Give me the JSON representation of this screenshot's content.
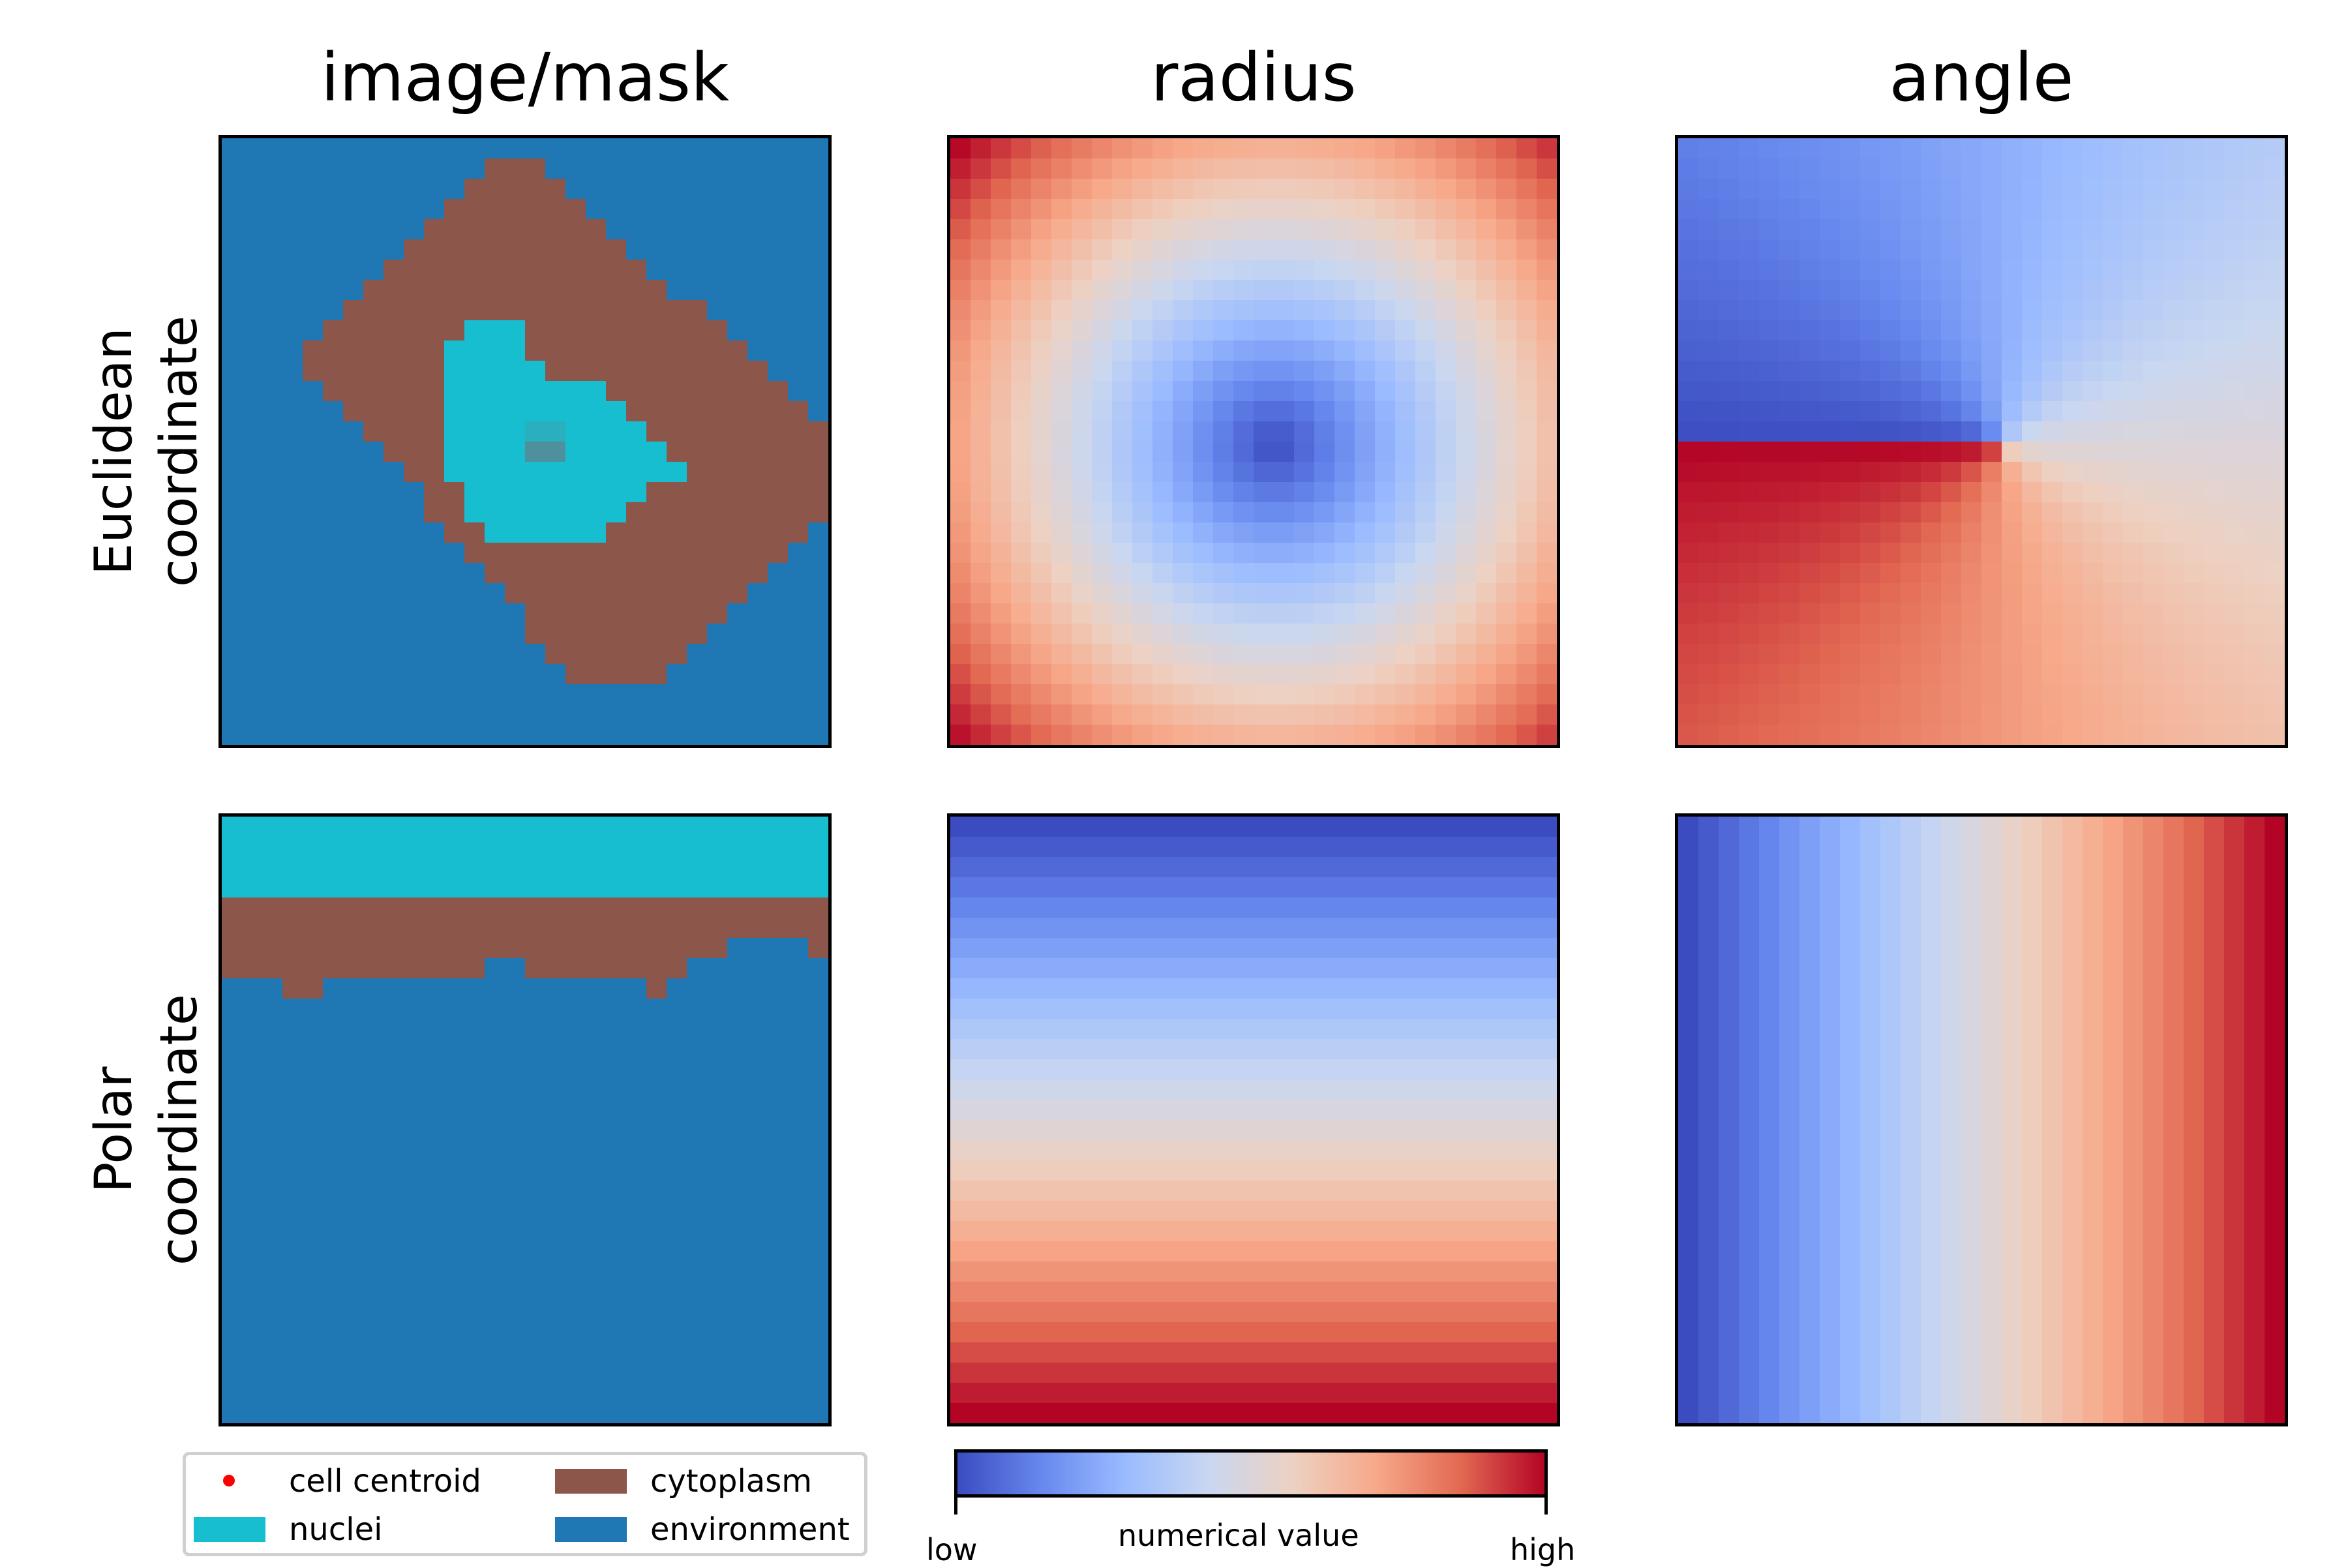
{
  "column_titles": [
    "image/mask",
    "radius",
    "angle"
  ],
  "row_labels": {
    "euclidean": [
      "Euclidean",
      "coordinate"
    ],
    "polar": [
      "Polar",
      "coordinate"
    ]
  },
  "legend": {
    "centroid": "cell centroid",
    "nuclei": "nuclei",
    "cytoplasm": "cytoplasm",
    "environment": "environment"
  },
  "colors": {
    "nuclei": "#17becf",
    "cytoplasm": "#8c564b",
    "environment": "#1f77b4",
    "centroid": "#ff0000",
    "colormap": "coolwarm"
  },
  "colorbar": {
    "label": "numerical value",
    "low": "low",
    "high": "high"
  }
}
